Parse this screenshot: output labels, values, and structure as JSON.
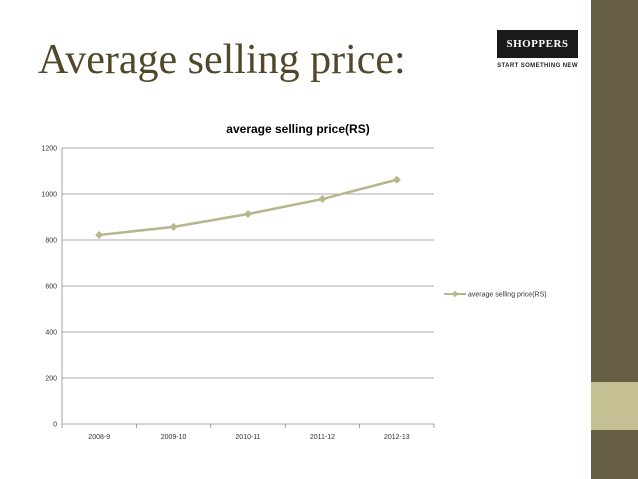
{
  "slide": {
    "title": "Average selling price:",
    "logo": {
      "name": "SHOPPERS STOP",
      "tagline": "START SOMETHING NEW"
    }
  },
  "colors": {
    "series": "#b8b58c",
    "bar": "#675f45",
    "bar_accent": "#c4c093",
    "title": "#51482c"
  },
  "chart_data": {
    "type": "line",
    "title": "average selling price(RS)",
    "categories": [
      "2008-9",
      "2009-10",
      "2010-11",
      "2011-12",
      "2012-13"
    ],
    "series": [
      {
        "name": "average selling price(RS)",
        "values": [
          822,
          857,
          913,
          978,
          1062
        ]
      }
    ],
    "ylim": [
      0,
      1200
    ],
    "yticks": [
      "0",
      "200",
      "400",
      "600",
      "800",
      "1000",
      "1200"
    ],
    "grid": true,
    "legend": "right"
  }
}
